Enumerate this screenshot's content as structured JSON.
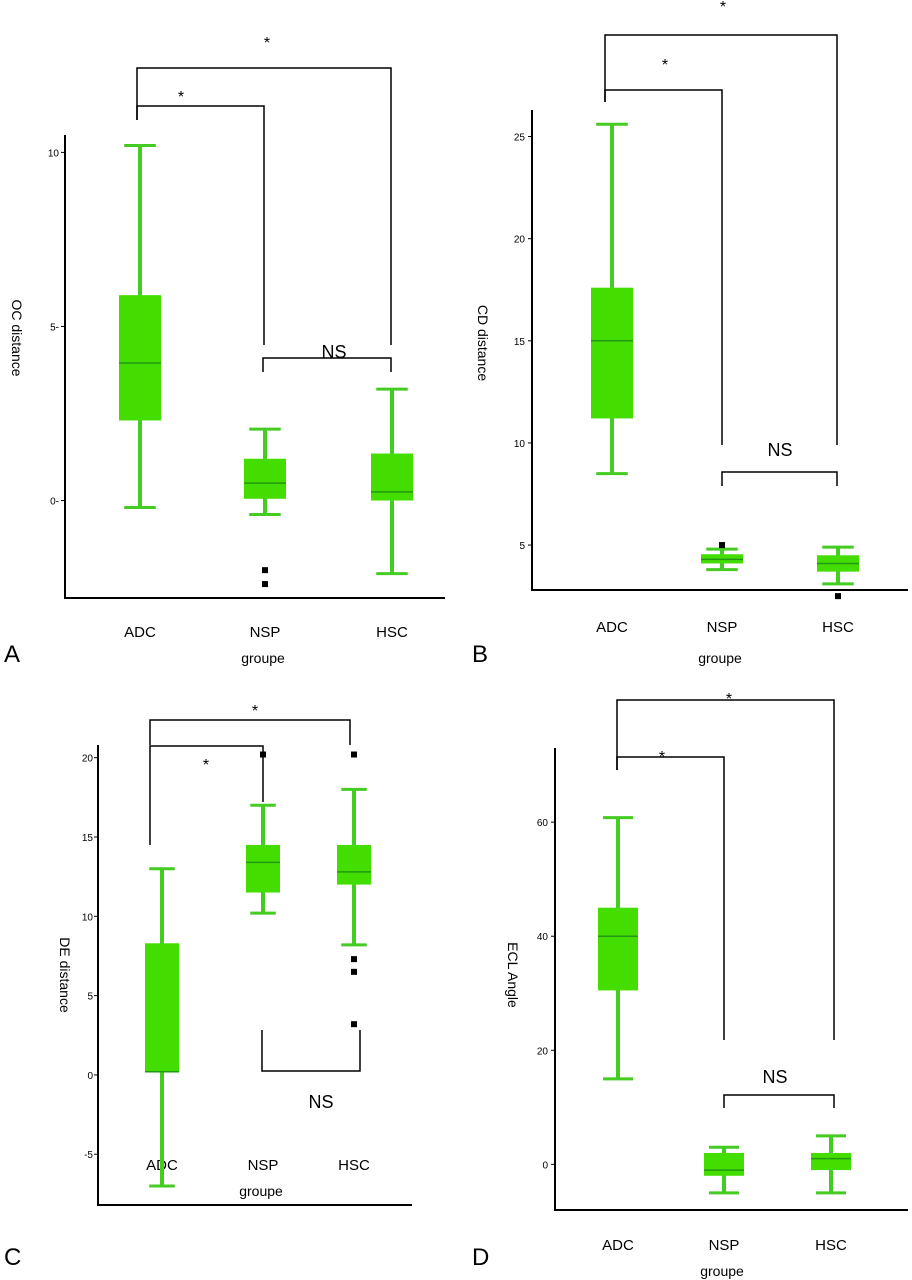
{
  "colors": {
    "box": "#44dd00",
    "whisker": "#44cc22",
    "median": "#229911",
    "outlier": "#000000",
    "axis": "#000000"
  },
  "chart_data": [
    {
      "panel": "A",
      "type": "box",
      "xlabel": "groupe",
      "ylabel": "OC distance",
      "categories": [
        "ADC",
        "NSP",
        "HSC"
      ],
      "ylim": [
        -2.8,
        10.5
      ],
      "yticks": [
        0,
        5,
        10
      ],
      "ytick_labels": [
        "0-",
        "5-",
        "10"
      ],
      "boxes": [
        {
          "group": "ADC",
          "min": -0.2,
          "q1": 2.3,
          "median": 3.95,
          "q3": 5.9,
          "max": 10.2,
          "outliers": []
        },
        {
          "group": "NSP",
          "min": -0.4,
          "q1": 0.05,
          "median": 0.5,
          "q3": 1.2,
          "max": 2.05,
          "outliers": [
            -2.0,
            -2.4
          ]
        },
        {
          "group": "HSC",
          "min": -2.1,
          "q1": 0.0,
          "median": 0.25,
          "q3": 1.35,
          "max": 3.2,
          "outliers": []
        }
      ],
      "brackets": [
        {
          "from": "ADC",
          "to": "NSP",
          "label": "*"
        },
        {
          "from": "ADC",
          "to": "HSC",
          "label": "*"
        },
        {
          "from": "NSP",
          "to": "HSC",
          "label": "NS"
        }
      ]
    },
    {
      "panel": "B",
      "type": "box",
      "xlabel": "groupe",
      "ylabel": "CD distance",
      "categories": [
        "ADC",
        "NSP",
        "HSC"
      ],
      "ylim": [
        2.8,
        26.3
      ],
      "yticks": [
        5,
        10,
        15,
        20,
        25
      ],
      "ytick_labels": [
        "5",
        "10",
        "15",
        "20",
        "25"
      ],
      "boxes": [
        {
          "group": "ADC",
          "min": 8.5,
          "q1": 11.2,
          "median": 15.0,
          "q3": 17.6,
          "max": 25.6,
          "outliers": []
        },
        {
          "group": "NSP",
          "min": 3.8,
          "q1": 4.1,
          "median": 4.3,
          "q3": 4.55,
          "max": 4.8,
          "outliers": [
            5.0
          ]
        },
        {
          "group": "HSC",
          "min": 3.1,
          "q1": 3.7,
          "median": 4.1,
          "q3": 4.5,
          "max": 4.9,
          "outliers": [
            2.5
          ]
        }
      ],
      "brackets": [
        {
          "from": "ADC",
          "to": "NSP",
          "label": "*"
        },
        {
          "from": "ADC",
          "to": "HSC",
          "label": "*"
        },
        {
          "from": "NSP",
          "to": "HSC",
          "label": "NS"
        }
      ]
    },
    {
      "panel": "C",
      "type": "box",
      "xlabel": "groupe",
      "ylabel": "DE distance",
      "categories": [
        "ADC",
        "NSP",
        "HSC"
      ],
      "ylim": [
        -8.2,
        20.8
      ],
      "yticks": [
        -5,
        0,
        5,
        10,
        15,
        20
      ],
      "ytick_labels": [
        "-5",
        "0",
        "5",
        "10",
        "15",
        "20"
      ],
      "boxes": [
        {
          "group": "ADC",
          "min": -7.0,
          "q1": 0.2,
          "median": 0.2,
          "q3": 8.3,
          "max": 13.0,
          "outliers": []
        },
        {
          "group": "NSP",
          "min": 10.2,
          "q1": 11.5,
          "median": 13.4,
          "q3": 14.5,
          "max": 17.0,
          "outliers": [
            20.2
          ]
        },
        {
          "group": "HSC",
          "min": 8.2,
          "q1": 12.0,
          "median": 12.8,
          "q3": 14.5,
          "max": 18.0,
          "outliers": [
            20.2,
            7.3,
            6.5,
            3.2
          ]
        }
      ],
      "brackets": [
        {
          "from": "ADC",
          "to": "NSP",
          "label": "*"
        },
        {
          "from": "ADC",
          "to": "HSC",
          "label": "*"
        },
        {
          "from": "NSP",
          "to": "HSC",
          "label": "NS"
        }
      ]
    },
    {
      "panel": "D",
      "type": "box",
      "xlabel": "groupe",
      "ylabel": "ECL Angle",
      "categories": [
        "ADC",
        "NSP",
        "HSC"
      ],
      "ylim": [
        -8,
        73
      ],
      "yticks": [
        0,
        20,
        40,
        60
      ],
      "ytick_labels": [
        "0",
        "20",
        "40",
        "60"
      ],
      "boxes": [
        {
          "group": "ADC",
          "min": 15.0,
          "q1": 30.5,
          "median": 40.0,
          "q3": 45.0,
          "max": 60.8,
          "outliers": []
        },
        {
          "group": "NSP",
          "min": -5.0,
          "q1": -2.0,
          "median": -1.0,
          "q3": 2.0,
          "max": 3.0,
          "outliers": []
        },
        {
          "group": "HSC",
          "min": -5.0,
          "q1": -1.0,
          "median": 1.0,
          "q3": 2.0,
          "max": 5.0,
          "outliers": []
        }
      ],
      "brackets": [
        {
          "from": "ADC",
          "to": "NSP",
          "label": "*"
        },
        {
          "from": "ADC",
          "to": "HSC",
          "label": "*"
        },
        {
          "from": "NSP",
          "to": "HSC",
          "label": "NS"
        }
      ]
    }
  ]
}
